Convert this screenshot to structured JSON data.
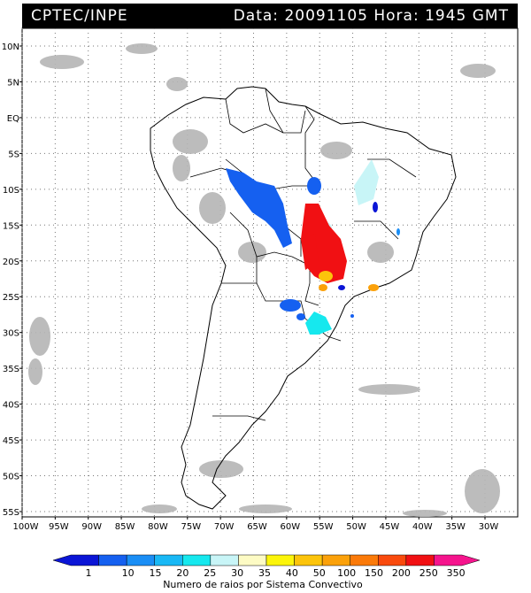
{
  "header": {
    "org": "CPTEC/INPE",
    "datetime": "Data: 20091105 Hora: 1945 GMT"
  },
  "map": {
    "lat_labels": [
      "10N",
      "5N",
      "EQ",
      "5S",
      "10S",
      "15S",
      "20S",
      "25S",
      "30S",
      "35S",
      "40S",
      "45S",
      "50S",
      "55S"
    ],
    "lon_labels": [
      "100W",
      "95W",
      "90W",
      "85W",
      "80W",
      "75W",
      "70W",
      "65W",
      "60W",
      "55W",
      "50W",
      "45W",
      "40W",
      "35W",
      "30W"
    ]
  },
  "colorbar": {
    "labels": [
      "1",
      "10",
      "15",
      "20",
      "25",
      "30",
      "35",
      "40",
      "50",
      "100",
      "150",
      "200",
      "250",
      "350"
    ],
    "colors": [
      "#0b15d6",
      "#1560f0",
      "#1a8ef5",
      "#19b8f5",
      "#16e8ee",
      "#c8f5f7",
      "#fdfbc4",
      "#fcf50a",
      "#fcc40b",
      "#fba10a",
      "#fb7a09",
      "#f94a0d",
      "#f11013",
      "#f5148d"
    ],
    "title": "Numero de raios por Sistema Convectivo"
  }
}
